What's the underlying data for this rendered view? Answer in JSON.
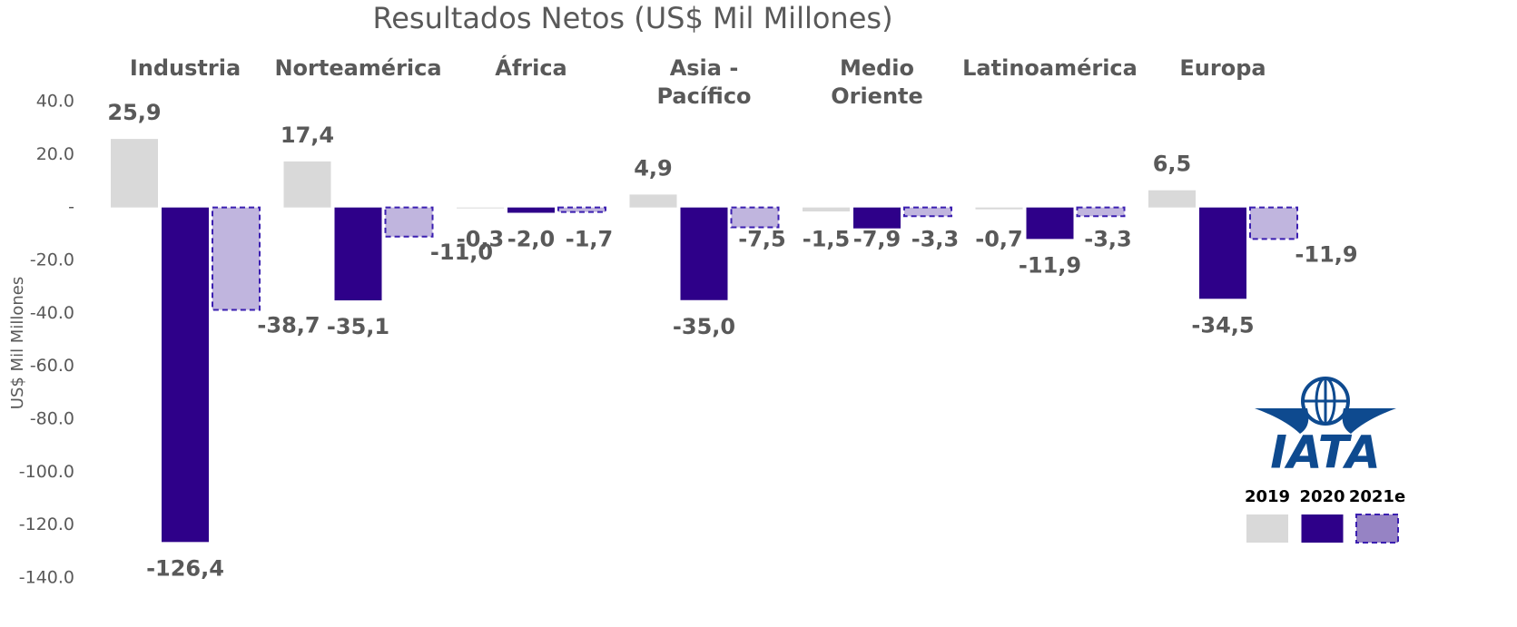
{
  "chart_data": {
    "type": "bar",
    "title": "Resultados Netos (US$ Mil Millones)",
    "y_label": "US$ Mil Millones",
    "logo": "IATA",
    "categories": [
      "Industria",
      "Norteamérica",
      "África",
      "Asia -\nPacífico",
      "Medio\nOriente",
      "Latinoamérica",
      "Europa"
    ],
    "series": [
      {
        "name": "2019",
        "color": "#d9d9d9",
        "values": [
          25.9,
          17.4,
          -0.3,
          4.9,
          -1.5,
          -0.7,
          6.5
        ],
        "value_labels": [
          "25,9",
          "17,4",
          "-0,3",
          "4,9",
          "-1,5",
          "-0,7",
          "6,5"
        ]
      },
      {
        "name": "2020",
        "color": "#2e0089",
        "values": [
          -126.4,
          -35.1,
          -2.0,
          -35.0,
          -7.9,
          -11.9,
          -34.5
        ],
        "value_labels": [
          "-126,4",
          "-35,1",
          "-2,0",
          "-35,0",
          "-7,9",
          "-11,9",
          "-34,5"
        ]
      },
      {
        "name": "2021e",
        "color": "#c0b5de",
        "border": "#3b1fb0",
        "dashed": true,
        "values": [
          -38.7,
          -11.0,
          -1.7,
          -7.5,
          -3.3,
          -3.3,
          -11.9
        ],
        "value_labels": [
          "-38,7",
          "-11,0",
          "-1,7",
          "-7,5",
          "-3,3",
          "-3,3",
          "-11,9"
        ]
      }
    ],
    "ylim": [
      -140,
      40
    ],
    "yticks": [
      {
        "value": 40,
        "label": "40.0"
      },
      {
        "value": 20,
        "label": "20.0"
      },
      {
        "value": 0,
        "label": "-"
      },
      {
        "value": -20,
        "label": "-20.0"
      },
      {
        "value": -40,
        "label": "-40.0"
      },
      {
        "value": -60,
        "label": "-60.0"
      },
      {
        "value": -80,
        "label": "-80.0"
      },
      {
        "value": -100,
        "label": "-100.0"
      },
      {
        "value": -120,
        "label": "-120.0"
      },
      {
        "value": -140,
        "label": "-140.0"
      }
    ],
    "grid": false
  }
}
